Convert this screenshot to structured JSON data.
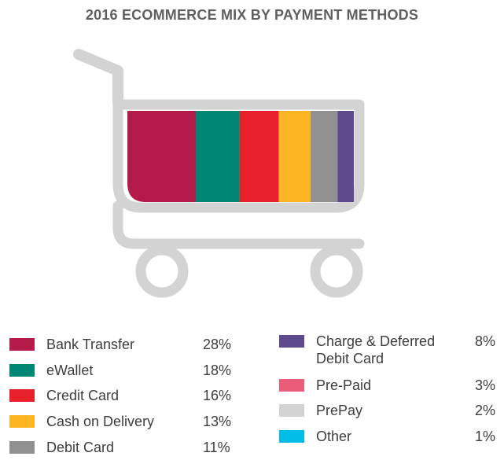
{
  "chart_data": {
    "type": "bar",
    "title": "2016 ECOMMERCE MIX BY PAYMENT METHODS",
    "categories": [
      "Bank Transfer",
      "eWallet",
      "Credit Card",
      "Cash on Delivery",
      "Debit Card",
      "Charge & Deferred Debit Card",
      "Pre-Paid",
      "PrePay",
      "Other"
    ],
    "values": [
      28,
      18,
      16,
      13,
      11,
      8,
      3,
      2,
      1
    ],
    "value_labels": [
      "28%",
      "18%",
      "16%",
      "13%",
      "11%",
      "8%",
      "3%",
      "2%",
      "1%"
    ],
    "unit": "%",
    "colors": [
      "#b31b48",
      "#008674",
      "#e8202c",
      "#fbb422",
      "#919191",
      "#5e4a8c",
      "#ea5c7a",
      "#d3d3d3",
      "#00bde8"
    ],
    "cart_color": "#d3d3d3",
    "legend_position": "bottom"
  }
}
